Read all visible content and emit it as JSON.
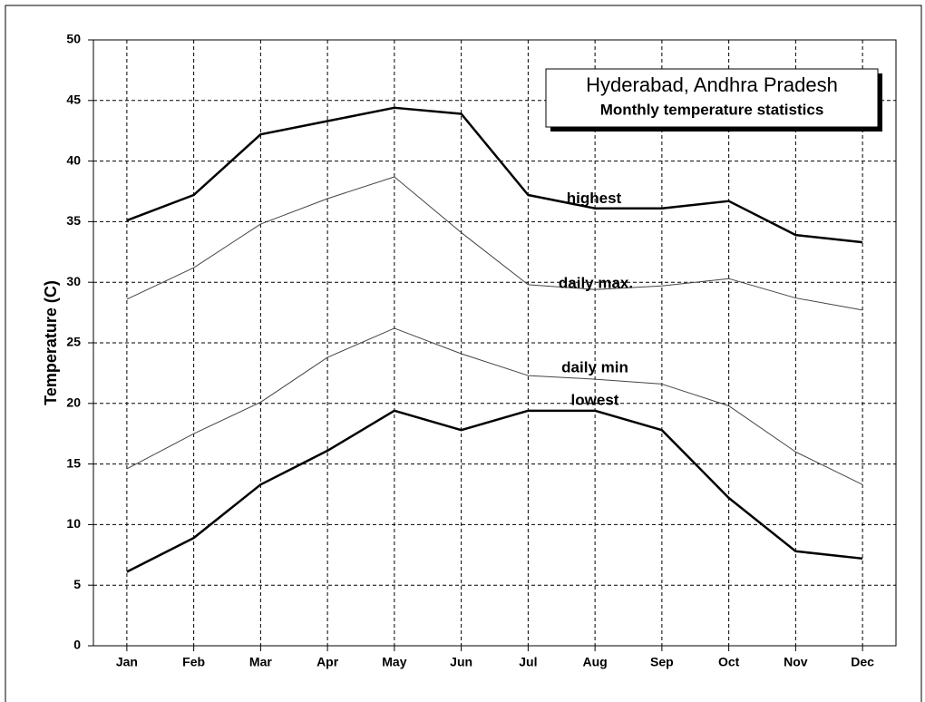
{
  "chart_data": {
    "type": "line",
    "title": "Hyderabad, Andhra Pradesh",
    "subtitle": "Monthly temperature statistics",
    "y_label": "Temperature (C)",
    "categories": [
      "Jan",
      "Feb",
      "Mar",
      "Apr",
      "May",
      "Jun",
      "Jul",
      "Aug",
      "Sep",
      "Oct",
      "Nov",
      "Dec"
    ],
    "series": [
      {
        "name": "highest",
        "color": "#000000",
        "linewidth": 2.5,
        "values": [
          35.1,
          37.2,
          42.2,
          43.3,
          44.4,
          43.9,
          37.2,
          36.1,
          36.1,
          36.7,
          33.9,
          33.3
        ]
      },
      {
        "name": "daily max.",
        "color": "#444444",
        "linewidth": 1,
        "values": [
          28.6,
          31.2,
          34.8,
          36.9,
          38.7,
          34.1,
          29.8,
          29.4,
          29.7,
          30.3,
          28.7,
          27.7
        ]
      },
      {
        "name": "daily min",
        "color": "#444444",
        "linewidth": 1,
        "values": [
          14.6,
          17.5,
          20.1,
          23.8,
          26.2,
          24.1,
          22.3,
          22.0,
          21.6,
          19.8,
          16.0,
          13.3
        ]
      },
      {
        "name": "lowest",
        "color": "#000000",
        "linewidth": 2.5,
        "values": [
          6.1,
          8.9,
          13.3,
          16.1,
          19.4,
          17.8,
          19.4,
          19.4,
          17.8,
          12.2,
          7.8,
          7.2
        ]
      }
    ],
    "ylim": [
      0,
      50
    ],
    "yticks": [
      0,
      5,
      10,
      15,
      20,
      25,
      30,
      35,
      40,
      45,
      50
    ],
    "grid": true
  }
}
